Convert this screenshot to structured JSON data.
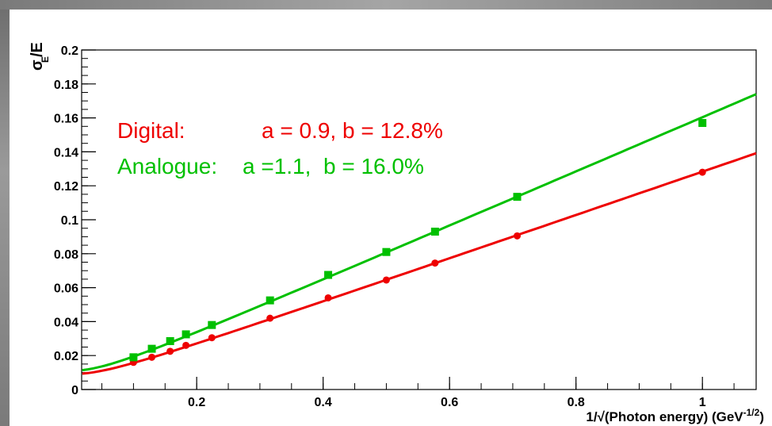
{
  "chart_data": {
    "type": "scatter",
    "xlabel": "1/√(Photon energy) (GeV^-1/2)",
    "xlabel_main": "1/√(Photon energy) (GeV",
    "xlabel_exp": "-1/2",
    "xlabel_close": ")",
    "ylabel": "σE/E",
    "ylabel_sigma": "σ",
    "ylabel_sub": "E",
    "ylabel_rest": "/E",
    "xlim": [
      0.018,
      1.085
    ],
    "ylim": [
      0,
      0.2
    ],
    "x_ticks": [
      {
        "value": 0.2,
        "label": "0.2"
      },
      {
        "value": 0.4,
        "label": "0.4"
      },
      {
        "value": 0.6,
        "label": "0.6"
      },
      {
        "value": 0.8,
        "label": "0.8"
      },
      {
        "value": 1.0,
        "label": "1"
      }
    ],
    "y_ticks": [
      {
        "value": 0.0,
        "label": "0"
      },
      {
        "value": 0.02,
        "label": "0.02"
      },
      {
        "value": 0.04,
        "label": "0.04"
      },
      {
        "value": 0.06,
        "label": "0.06"
      },
      {
        "value": 0.08,
        "label": "0.08"
      },
      {
        "value": 0.1,
        "label": "0.1"
      },
      {
        "value": 0.12,
        "label": "0.12"
      },
      {
        "value": 0.14,
        "label": "0.14"
      },
      {
        "value": 0.16,
        "label": "0.16"
      },
      {
        "value": 0.18,
        "label": "0.18"
      },
      {
        "value": 0.2,
        "label": "0.2"
      }
    ],
    "x_minor_step": 0.05,
    "y_minor_step": 0.005,
    "grid": false,
    "annotations": [
      {
        "key": "digital",
        "label": "Digital:",
        "text": "a = 0.9, b = 12.8%",
        "color": "#ee0000"
      },
      {
        "key": "analogue",
        "label": "Analogue:",
        "text": "a =1.1,  b = 16.0%",
        "color": "#00c000"
      }
    ],
    "series": [
      {
        "key": "digital",
        "color": "#ee0000",
        "marker": "circle",
        "fit": {
          "a": 0.009,
          "b": 0.128
        },
        "points": [
          {
            "x": 0.1,
            "y": 0.016
          },
          {
            "x": 0.129,
            "y": 0.019
          },
          {
            "x": 0.158,
            "y": 0.0225
          },
          {
            "x": 0.183,
            "y": 0.026
          },
          {
            "x": 0.224,
            "y": 0.0305
          },
          {
            "x": 0.316,
            "y": 0.042
          },
          {
            "x": 0.408,
            "y": 0.054
          },
          {
            "x": 0.5,
            "y": 0.0645
          },
          {
            "x": 0.577,
            "y": 0.0745
          },
          {
            "x": 0.707,
            "y": 0.0905
          },
          {
            "x": 1.0,
            "y": 0.128
          }
        ]
      },
      {
        "key": "analogue",
        "color": "#00c000",
        "marker": "square",
        "fit": {
          "a": 0.011,
          "b": 0.16
        },
        "points": [
          {
            "x": 0.1,
            "y": 0.019
          },
          {
            "x": 0.129,
            "y": 0.024
          },
          {
            "x": 0.158,
            "y": 0.0285
          },
          {
            "x": 0.183,
            "y": 0.0325
          },
          {
            "x": 0.224,
            "y": 0.038
          },
          {
            "x": 0.316,
            "y": 0.0525
          },
          {
            "x": 0.408,
            "y": 0.0675
          },
          {
            "x": 0.5,
            "y": 0.081
          },
          {
            "x": 0.577,
            "y": 0.093
          },
          {
            "x": 0.707,
            "y": 0.1135
          },
          {
            "x": 1.0,
            "y": 0.157
          }
        ]
      }
    ]
  }
}
